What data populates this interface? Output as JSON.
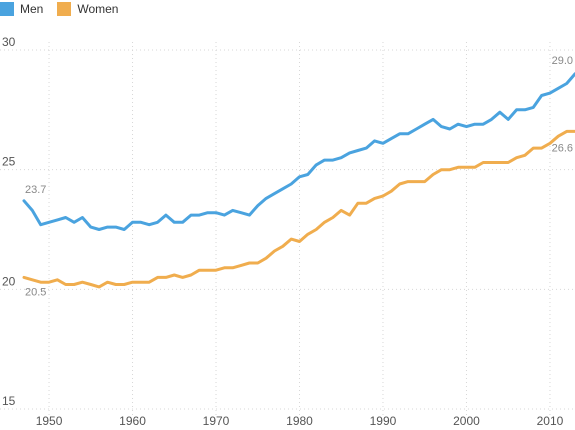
{
  "chart_data": {
    "type": "line",
    "title": "",
    "xlabel": "",
    "ylabel": "",
    "xlim": [
      1947,
      2013
    ],
    "ylim": [
      15,
      30
    ],
    "x_ticks": [
      1950,
      1960,
      1970,
      1980,
      1990,
      2000,
      2010
    ],
    "y_ticks": [
      15,
      20,
      25,
      30
    ],
    "grid": true,
    "legend_position": "top-left",
    "colors": {
      "men": "#4aa3df",
      "women": "#f0ad4e",
      "grid": "#d7d7d7",
      "tick_label": "#555555",
      "annotation": "#888888"
    },
    "series": [
      {
        "name": "Men",
        "color": "#4aa3df",
        "start_label": "23.7",
        "end_label": "29.0",
        "x": [
          1947,
          1948,
          1949,
          1950,
          1951,
          1952,
          1953,
          1954,
          1955,
          1956,
          1957,
          1958,
          1959,
          1960,
          1961,
          1962,
          1963,
          1964,
          1965,
          1966,
          1967,
          1968,
          1969,
          1970,
          1971,
          1972,
          1973,
          1974,
          1975,
          1976,
          1977,
          1978,
          1979,
          1980,
          1981,
          1982,
          1983,
          1984,
          1985,
          1986,
          1987,
          1988,
          1989,
          1990,
          1991,
          1992,
          1993,
          1994,
          1995,
          1996,
          1997,
          1998,
          1999,
          2000,
          2001,
          2002,
          2003,
          2004,
          2005,
          2006,
          2007,
          2008,
          2009,
          2010,
          2011,
          2012,
          2013
        ],
        "values": [
          23.7,
          23.3,
          22.7,
          22.8,
          22.9,
          23.0,
          22.8,
          23.0,
          22.6,
          22.5,
          22.6,
          22.6,
          22.5,
          22.8,
          22.8,
          22.7,
          22.8,
          23.1,
          22.8,
          22.8,
          23.1,
          23.1,
          23.2,
          23.2,
          23.1,
          23.3,
          23.2,
          23.1,
          23.5,
          23.8,
          24.0,
          24.2,
          24.4,
          24.7,
          24.8,
          25.2,
          25.4,
          25.4,
          25.5,
          25.7,
          25.8,
          25.9,
          26.2,
          26.1,
          26.3,
          26.5,
          26.5,
          26.7,
          26.9,
          27.1,
          26.8,
          26.7,
          26.9,
          26.8,
          26.9,
          26.9,
          27.1,
          27.4,
          27.1,
          27.5,
          27.5,
          27.6,
          28.1,
          28.2,
          28.4,
          28.6,
          29.0
        ]
      },
      {
        "name": "Women",
        "color": "#f0ad4e",
        "start_label": "20.5",
        "end_label": "26.6",
        "x": [
          1947,
          1948,
          1949,
          1950,
          1951,
          1952,
          1953,
          1954,
          1955,
          1956,
          1957,
          1958,
          1959,
          1960,
          1961,
          1962,
          1963,
          1964,
          1965,
          1966,
          1967,
          1968,
          1969,
          1970,
          1971,
          1972,
          1973,
          1974,
          1975,
          1976,
          1977,
          1978,
          1979,
          1980,
          1981,
          1982,
          1983,
          1984,
          1985,
          1986,
          1987,
          1988,
          1989,
          1990,
          1991,
          1992,
          1993,
          1994,
          1995,
          1996,
          1997,
          1998,
          1999,
          2000,
          2001,
          2002,
          2003,
          2004,
          2005,
          2006,
          2007,
          2008,
          2009,
          2010,
          2011,
          2012,
          2013
        ],
        "values": [
          20.5,
          20.4,
          20.3,
          20.3,
          20.4,
          20.2,
          20.2,
          20.3,
          20.2,
          20.1,
          20.3,
          20.2,
          20.2,
          20.3,
          20.3,
          20.3,
          20.5,
          20.5,
          20.6,
          20.5,
          20.6,
          20.8,
          20.8,
          20.8,
          20.9,
          20.9,
          21.0,
          21.1,
          21.1,
          21.3,
          21.6,
          21.8,
          22.1,
          22.0,
          22.3,
          22.5,
          22.8,
          23.0,
          23.3,
          23.1,
          23.6,
          23.6,
          23.8,
          23.9,
          24.1,
          24.4,
          24.5,
          24.5,
          24.5,
          24.8,
          25.0,
          25.0,
          25.1,
          25.1,
          25.1,
          25.3,
          25.3,
          25.3,
          25.3,
          25.5,
          25.6,
          25.9,
          25.9,
          26.1,
          26.4,
          26.6,
          26.6
        ]
      }
    ]
  }
}
